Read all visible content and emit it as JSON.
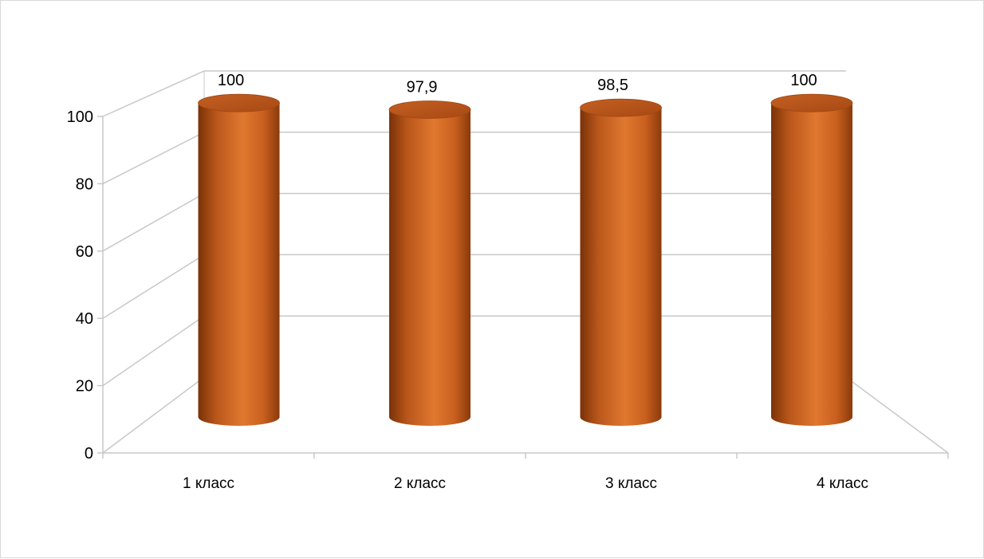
{
  "chart_data": {
    "type": "bar",
    "style": "3d-cylinder",
    "categories": [
      "1 класс",
      "2 класс",
      "3 класс",
      "4 класс"
    ],
    "values": [
      100,
      97.9,
      98.5,
      100
    ],
    "value_labels": [
      "100",
      "97,9",
      "98,5",
      "100"
    ],
    "yticks": [
      "0",
      "20",
      "40",
      "60",
      "80",
      "100"
    ],
    "ylim": [
      0,
      100
    ],
    "grid": true,
    "legend": "none",
    "colors": {
      "bar": "#d2691e",
      "bar_dark": "#7a3208",
      "bar_light": "#e8935a",
      "grid": "#c8c8c8"
    }
  }
}
